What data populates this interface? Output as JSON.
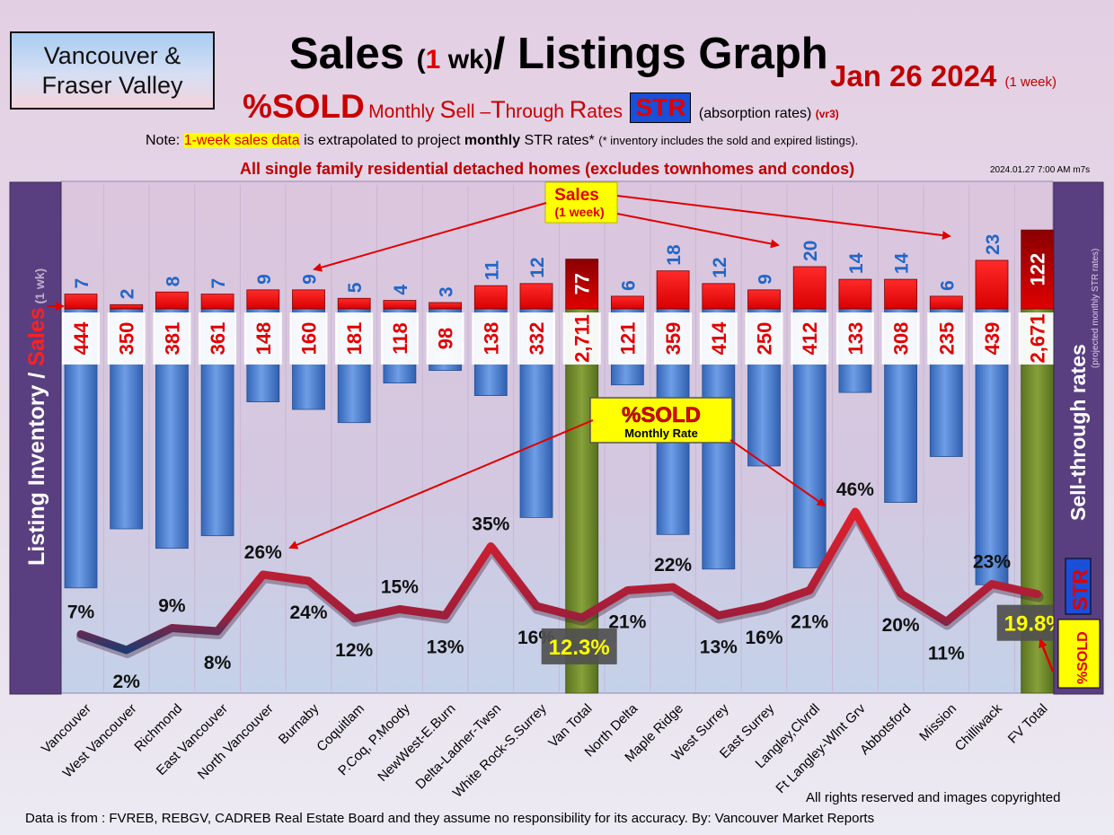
{
  "header": {
    "region_line1": "Vancouver &",
    "region_line2": "Fraser Valley",
    "title_part1": "Sales ",
    "title_part2": "(",
    "title_part3": "1",
    "title_part4": " wk)",
    "title_part5": "/ Listings Graph",
    "date": "Jan 26  2024",
    "date_sub": "(1 week)",
    "subtitle_sold": "%SOLD",
    "subtitle_m1": "Monthly ",
    "subtitle_s": "S",
    "subtitle_m2": "ell –",
    "subtitle_t": "T",
    "subtitle_m3": "hrough ",
    "subtitle_r": "R",
    "subtitle_m4": "ates",
    "subtitle_str": "STR",
    "subtitle_abs": "(absorption rates)",
    "subtitle_vr": "(vr3)",
    "note_prefix": "Note: ",
    "note_highlight": "1-week sales data",
    "note_mid": " is extrapolated to project ",
    "note_bold": "monthly",
    "note_tail": " STR rates* ",
    "note_small": "(* inventory includes the sold and expired listings).",
    "all_sfr": "All single family residential detached homes (excludes townhomes and condos)",
    "stamp": "2024.01.27 7:00 AM m7s"
  },
  "left_panel": {
    "inventory": "Listing Inventory ",
    "slash": "/ ",
    "sales": "Sales",
    "one_wk": " (1 wk)"
  },
  "right_panel": {
    "projected": "(projected monthly STR rates)",
    "sell_through": "Sell-through rates",
    "str": "STR",
    "sold": "%SOLD"
  },
  "callouts": {
    "sales_line1": "Sales",
    "sales_line2": "(1 week)",
    "sold_title": "%SOLD",
    "sold_sub": "Monthly Rate"
  },
  "footer": {
    "rights": "All rights reserved and  images copyrighted",
    "source": "Data is from : FVREB, REBGV, CADREB Real Estate Board and they assume no responsibility for its accuracy. By: Vancouver Market Reports"
  },
  "colors": {
    "sales_bar": "#ff0000",
    "inventory_bar": "#4f86d6",
    "total_bar": "#6f8a2a",
    "str_line": "#c01a28",
    "accent": "#c00000",
    "panel": "#5a3f80"
  },
  "chart_data": {
    "type": "bar",
    "categories": [
      "Vancouver",
      "West Vancouver",
      "Richmond",
      "East Vancouver",
      "North Vancouver",
      "Burnaby",
      "Coquitlam",
      "P.Coq, P.Moody",
      "NewWest-E.Burn",
      "Delta-Ladner-Twsn",
      "White Rock-S.Surrey",
      "Van Total",
      "North Delta",
      "Maple Ridge",
      "West Surrey",
      "East Surrey",
      "Langley,Clvrdl",
      "Ft Langley-Wlnt Grv",
      "Abbotsford",
      "Mission",
      "Chilliwack",
      "FV Total"
    ],
    "series": [
      {
        "values": [
          7,
          2,
          8,
          7,
          9,
          9,
          5,
          4,
          3,
          11,
          12,
          77,
          6,
          18,
          12,
          9,
          20,
          14,
          14,
          6,
          23,
          122
        ]
      },
      {
        "values": [
          444,
          350,
          381,
          361,
          148,
          160,
          181,
          118,
          98,
          138,
          332,
          2711,
          121,
          359,
          414,
          250,
          412,
          133,
          308,
          235,
          439,
          2671
        ]
      },
      {
        "values": [
          7,
          2,
          9,
          8,
          26,
          24,
          12,
          15,
          13,
          35,
          16,
          12.3,
          21,
          22,
          13,
          16,
          21,
          46,
          20,
          11,
          23,
          19.8
        ]
      }
    ],
    "inventory_labels": [
      "444",
      "350",
      "381",
      "361",
      "148",
      "160",
      "181",
      "118",
      "98",
      "138",
      "332",
      "2,711",
      "121",
      "359",
      "414",
      "250",
      "412",
      "133",
      "308",
      "235",
      "439",
      "2,671"
    ],
    "sales_labels": [
      "7",
      "2",
      "8",
      "7",
      "9",
      "9",
      "5",
      "4",
      "3",
      "11",
      "12",
      "77",
      "6",
      "18",
      "12",
      "9",
      "20",
      "14",
      "14",
      "6",
      "23",
      "122"
    ],
    "str_labels": [
      "7%",
      "2%",
      "9%",
      "8%",
      "26%",
      "24%",
      "12%",
      "15%",
      "13%",
      "35%",
      "16%",
      "12.3%",
      "21%",
      "22%",
      "13%",
      "16%",
      "21%",
      "46%",
      "20%",
      "11%",
      "23%",
      "19.8%"
    ],
    "total_indices": [
      11,
      21
    ]
  }
}
